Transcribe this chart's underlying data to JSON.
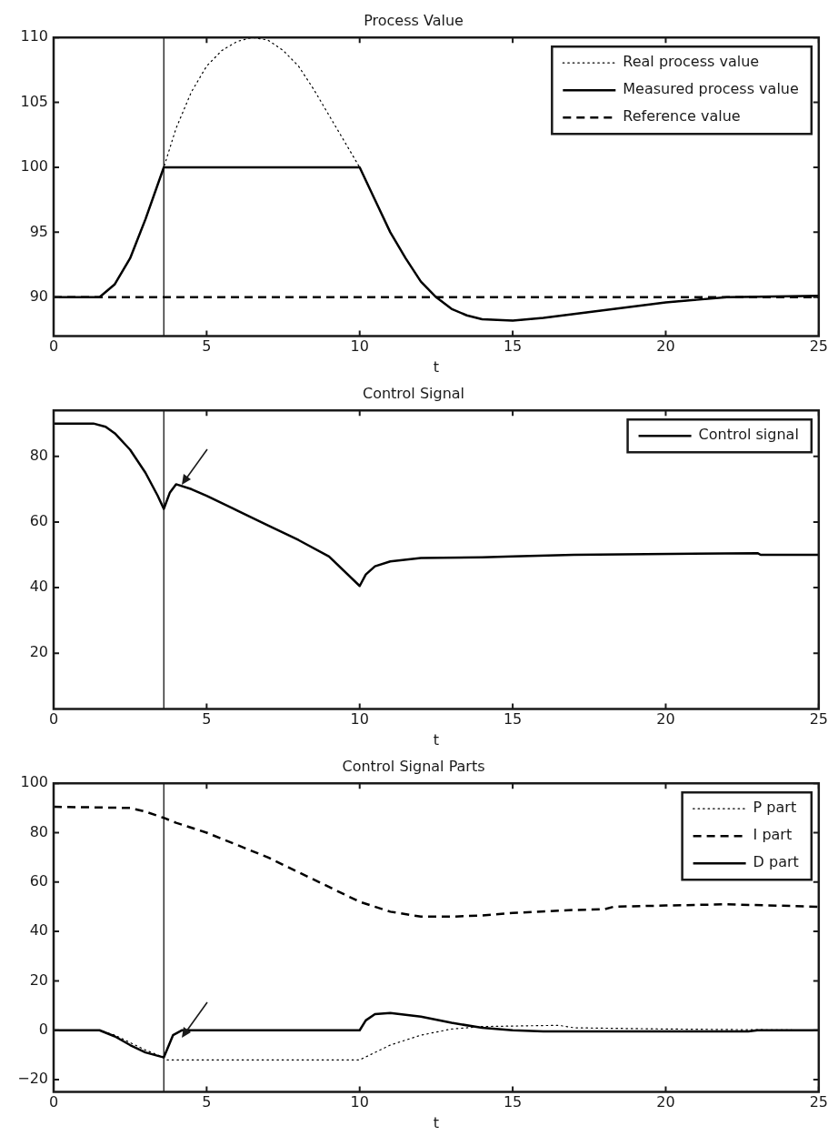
{
  "chart_data": [
    {
      "type": "line",
      "title": "Process Value",
      "xlabel": "t",
      "xlim": [
        0,
        25
      ],
      "xticks": [
        0,
        5,
        10,
        15,
        20,
        25
      ],
      "ylim": [
        87,
        110
      ],
      "yticks": [
        90,
        95,
        100,
        105,
        110
      ],
      "legend": "top right",
      "ref_lines": [
        {
          "axis": "x",
          "value": 3.6,
          "color": "#000000"
        }
      ],
      "series": [
        {
          "name": "Real process value",
          "color": "#000000",
          "line_style": "dotted",
          "x": [
            0,
            1.5,
            2,
            2.5,
            3,
            3.6,
            4,
            4.5,
            5,
            5.5,
            6,
            6.5,
            7,
            7.5,
            8,
            8.5,
            9,
            9.5,
            10,
            10.5,
            11,
            11.5,
            12,
            12.5,
            13,
            13.5,
            14,
            15,
            16,
            17,
            18,
            19,
            20,
            21,
            22,
            25
          ],
          "values": [
            90,
            90,
            91,
            93,
            96,
            100,
            103,
            105.8,
            107.8,
            109,
            109.7,
            110,
            109.8,
            109,
            107.8,
            106,
            104,
            102,
            100,
            97.5,
            95,
            93,
            91.2,
            90,
            89.1,
            88.6,
            88.3,
            88.2,
            88.4,
            88.7,
            89,
            89.3,
            89.6,
            89.8,
            90,
            90.1
          ]
        },
        {
          "name": "Measured process value",
          "color": "#000000",
          "line_style": "solid",
          "x": [
            0,
            1.5,
            2,
            2.5,
            3,
            3.6,
            10,
            10.5,
            11,
            11.5,
            12,
            12.5,
            13,
            13.5,
            14,
            15,
            16,
            17,
            18,
            19,
            20,
            21,
            22,
            25
          ],
          "values": [
            90,
            90,
            91,
            93,
            96,
            100,
            100,
            97.5,
            95,
            93,
            91.2,
            90,
            89.1,
            88.6,
            88.3,
            88.2,
            88.4,
            88.7,
            89,
            89.3,
            89.6,
            89.8,
            90,
            90.1
          ]
        },
        {
          "name": "Reference value",
          "color": "#000000",
          "line_style": "dashed",
          "x": [
            0,
            25
          ],
          "values": [
            90,
            90
          ]
        }
      ]
    },
    {
      "type": "line",
      "title": "Control Signal",
      "xlabel": "t",
      "xlim": [
        0,
        25
      ],
      "xticks": [
        0,
        5,
        10,
        15,
        20,
        25
      ],
      "ylim": [
        3,
        94
      ],
      "yticks": [
        20,
        40,
        60,
        80
      ],
      "legend": "top right",
      "ref_lines": [
        {
          "axis": "x",
          "value": 3.6,
          "color": "#000000"
        }
      ],
      "series": [
        {
          "name": "Control signal",
          "color": "#000000",
          "line_style": "solid",
          "x": [
            0,
            1.3,
            1.7,
            2,
            2.5,
            3,
            3.4,
            3.6,
            3.8,
            4,
            4.5,
            5,
            6,
            7,
            8,
            9,
            10,
            10.2,
            10.5,
            11,
            12,
            14,
            15,
            17,
            23,
            23.1,
            25
          ],
          "values": [
            90,
            90,
            89,
            87,
            82,
            75,
            68,
            64,
            69,
            71.5,
            70,
            68,
            63.5,
            59,
            54.5,
            49.5,
            40.5,
            44,
            46.5,
            48,
            49,
            49.2,
            49.5,
            50,
            50.5,
            50,
            50
          ]
        }
      ]
    },
    {
      "type": "line",
      "title": "Control Signal Parts",
      "xlabel": "t",
      "xlim": [
        0,
        25
      ],
      "xticks": [
        0,
        5,
        10,
        15,
        20,
        25
      ],
      "ylim": [
        -25,
        100
      ],
      "yticks": [
        {
          "value": -20,
          "label": "−20"
        },
        0,
        20,
        40,
        60,
        80,
        100
      ],
      "legend": "top right",
      "ref_lines": [
        {
          "axis": "x",
          "value": 3.6,
          "color": "#000000"
        }
      ],
      "series": [
        {
          "name": "P part",
          "color": "#000000",
          "line_style": "dotted",
          "x": [
            0,
            1.5,
            2,
            2.5,
            3,
            3.6,
            3.7,
            10,
            10.5,
            11,
            12,
            13,
            14,
            16.5,
            17,
            20,
            25
          ],
          "values": [
            0,
            0,
            -2,
            -5,
            -8,
            -11,
            -12,
            -12,
            -9,
            -6,
            -2,
            0.5,
            1.5,
            2,
            1,
            0.5,
            0
          ]
        },
        {
          "name": "I part",
          "color": "#000000",
          "line_style": "dashed",
          "x": [
            0,
            2.5,
            3,
            3.6,
            4,
            5,
            6,
            7,
            8,
            9,
            10,
            11,
            12,
            13,
            14,
            15,
            17,
            18,
            18.3,
            20,
            22,
            25
          ],
          "values": [
            90.5,
            90,
            88.5,
            86,
            84,
            80,
            75,
            70,
            64,
            58,
            52,
            48,
            46,
            46,
            46.5,
            47.5,
            48.7,
            49,
            50,
            50.5,
            51,
            50
          ]
        },
        {
          "name": "D part",
          "color": "#000000",
          "line_style": "solid",
          "x": [
            0,
            1.5,
            2,
            2.5,
            3,
            3.6,
            3.7,
            3.9,
            4.2,
            10,
            10.2,
            10.5,
            11,
            12,
            13,
            14,
            15,
            16,
            22.7,
            23,
            25
          ],
          "values": [
            0,
            0,
            -2.5,
            -6,
            -9,
            -11,
            -8,
            -2,
            0,
            0,
            4,
            6.5,
            7,
            5.5,
            3,
            1,
            0,
            -0.5,
            -0.5,
            0,
            0
          ]
        }
      ]
    }
  ]
}
